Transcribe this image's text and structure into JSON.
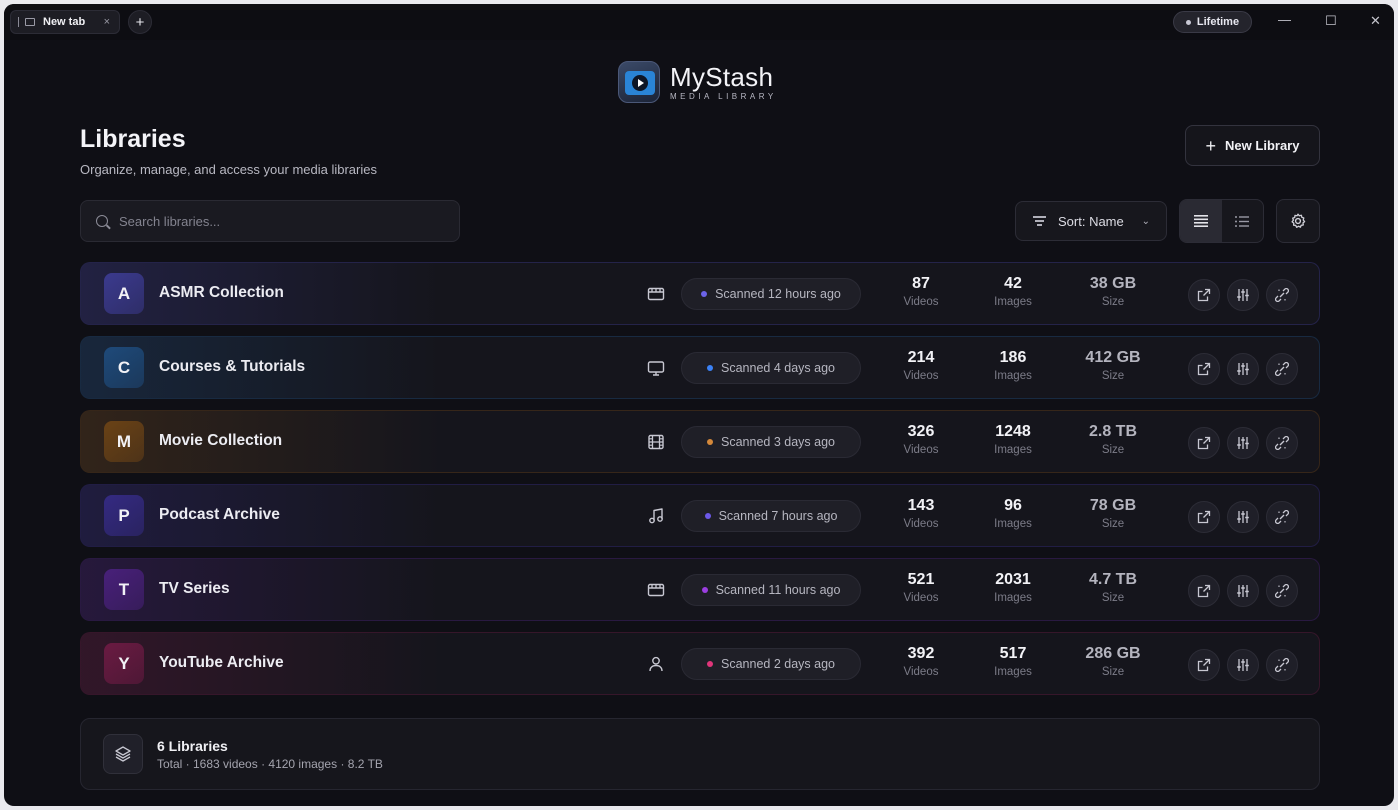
{
  "browser": {
    "tab_title": "New tab",
    "tab_close": "×",
    "new_tab": "+",
    "plan_badge": "Lifetime",
    "minimize": "—",
    "maximize": "☐",
    "close": "✕"
  },
  "logo": {
    "name": "MyStash",
    "subtitle": "MEDIA LIBRARY"
  },
  "header": {
    "title": "Libraries",
    "subtitle": "Organize, manage, and access your media libraries",
    "new_library_label": "New Library",
    "new_library_icon": "+"
  },
  "toolbar": {
    "search_placeholder": "Search libraries...",
    "sort_label": "Sort: Name",
    "sort_chevron": "⌄",
    "view_mode": "detailed-list"
  },
  "libraries": [
    {
      "initial": "A",
      "name": "ASMR Collection",
      "type_icon": "calendar-icon",
      "status": "Scanned 12 hours ago",
      "status_color": "#6c63e8",
      "videos": "87",
      "images": "42",
      "size": "38 GB",
      "videos_label": "Videos",
      "images_label": "Images",
      "size_label": "Size",
      "accent": "#3b3a8e"
    },
    {
      "initial": "C",
      "name": "Courses & Tutorials",
      "type_icon": "monitor-icon",
      "status": "Scanned 4 days ago",
      "status_color": "#3b82f6",
      "videos": "214",
      "images": "186",
      "size": "412 GB",
      "videos_label": "Videos",
      "images_label": "Images",
      "size_label": "Size",
      "accent": "#1e4a7a"
    },
    {
      "initial": "M",
      "name": "Movie Collection",
      "type_icon": "film-icon",
      "status": "Scanned 3 days ago",
      "status_color": "#d4883a",
      "videos": "326",
      "images": "1248",
      "size": "2.8 TB",
      "videos_label": "Videos",
      "images_label": "Images",
      "size_label": "Size",
      "accent": "#6a4216"
    },
    {
      "initial": "P",
      "name": "Podcast Archive",
      "type_icon": "music-icon",
      "status": "Scanned 7 hours ago",
      "status_color": "#6c58e8",
      "videos": "143",
      "images": "96",
      "size": "78 GB",
      "videos_label": "Videos",
      "images_label": "Images",
      "size_label": "Size",
      "accent": "#342a82"
    },
    {
      "initial": "T",
      "name": "TV Series",
      "type_icon": "calendar-icon",
      "status": "Scanned 11 hours ago",
      "status_color": "#9b3ee0",
      "videos": "521",
      "images": "2031",
      "size": "4.7 TB",
      "videos_label": "Videos",
      "images_label": "Images",
      "size_label": "Size",
      "accent": "#48207a"
    },
    {
      "initial": "Y",
      "name": "YouTube Archive",
      "type_icon": "user-icon",
      "status": "Scanned 2 days ago",
      "status_color": "#e0357a",
      "videos": "392",
      "images": "517",
      "size": "286 GB",
      "videos_label": "Videos",
      "images_label": "Images",
      "size_label": "Size",
      "accent": "#6a1a42"
    }
  ],
  "footer": {
    "title": "6 Libraries",
    "summary": "Total · 1683 videos · 4120 images · 8.2 TB"
  }
}
